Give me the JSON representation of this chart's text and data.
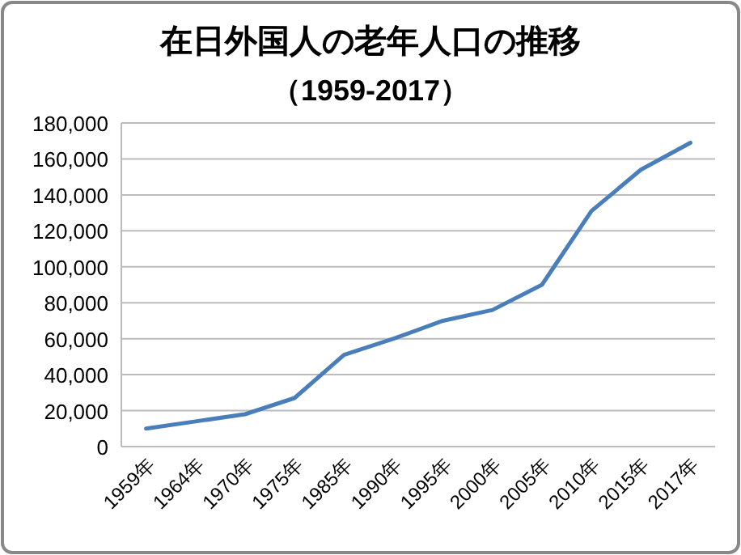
{
  "chart_data": {
    "type": "line",
    "title": "在日外国人の老年人口の推移",
    "subtitle": "（1959-2017）",
    "categories": [
      "1959年",
      "1964年",
      "1970年",
      "1975年",
      "1985年",
      "1990年",
      "1995年",
      "2000年",
      "2005年",
      "2010年",
      "2015年",
      "2017年"
    ],
    "series": [
      {
        "color": "#4a7ebb",
        "values": [
          10000,
          14000,
          18000,
          27000,
          51000,
          60000,
          70000,
          76000,
          90000,
          131000,
          154000,
          169000
        ]
      }
    ],
    "ylim": [
      0,
      180000
    ],
    "yticks": [
      {
        "value": 0,
        "label": "0"
      },
      {
        "value": 20000,
        "label": "20,000"
      },
      {
        "value": 40000,
        "label": "40,000"
      },
      {
        "value": 60000,
        "label": "60,000"
      },
      {
        "value": 80000,
        "label": "80,000"
      },
      {
        "value": 100000,
        "label": "100,000"
      },
      {
        "value": 120000,
        "label": "120,000"
      },
      {
        "value": 140000,
        "label": "140,000"
      },
      {
        "value": 160000,
        "label": "160,000"
      },
      {
        "value": 180000,
        "label": "180,000"
      }
    ],
    "grid": "y",
    "marker": "none",
    "line_style": "solid"
  }
}
